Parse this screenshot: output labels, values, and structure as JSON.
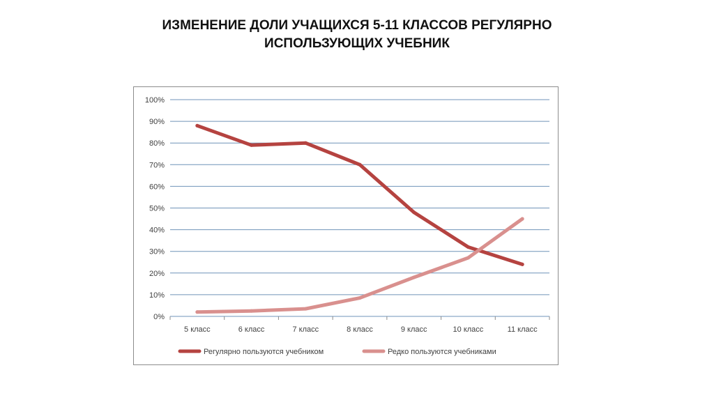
{
  "slide": {
    "title_line1": "ИЗМЕНЕНИЕ ДОЛИ УЧАЩИХСЯ 5-11 КЛАССОВ РЕГУЛЯРНО",
    "title_line2": "ИСПОЛЬЗУЮЩИХ УЧЕБНИК"
  },
  "chart_data": {
    "type": "line",
    "categories": [
      "5 класс",
      "6 класс",
      "7 класс",
      "8 класс",
      "9 класс",
      "10 класс",
      "11 класс"
    ],
    "series": [
      {
        "name": "Регулярно пользуются учебником",
        "values": [
          88,
          79,
          80,
          70,
          48,
          32,
          24
        ],
        "color": "#b54340"
      },
      {
        "name": "Редко пользуются учебниками",
        "values": [
          2,
          2.5,
          3.5,
          8.5,
          18,
          27,
          45
        ],
        "color": "#d9908e"
      }
    ],
    "y_ticks": [
      "0%",
      "10%",
      "20%",
      "30%",
      "40%",
      "50%",
      "60%",
      "70%",
      "80%",
      "90%",
      "100%"
    ],
    "ylim": [
      0,
      100
    ],
    "y_unit": "%",
    "grid": true,
    "legend_position": "bottom",
    "gridline_color": "#6f93b8"
  }
}
